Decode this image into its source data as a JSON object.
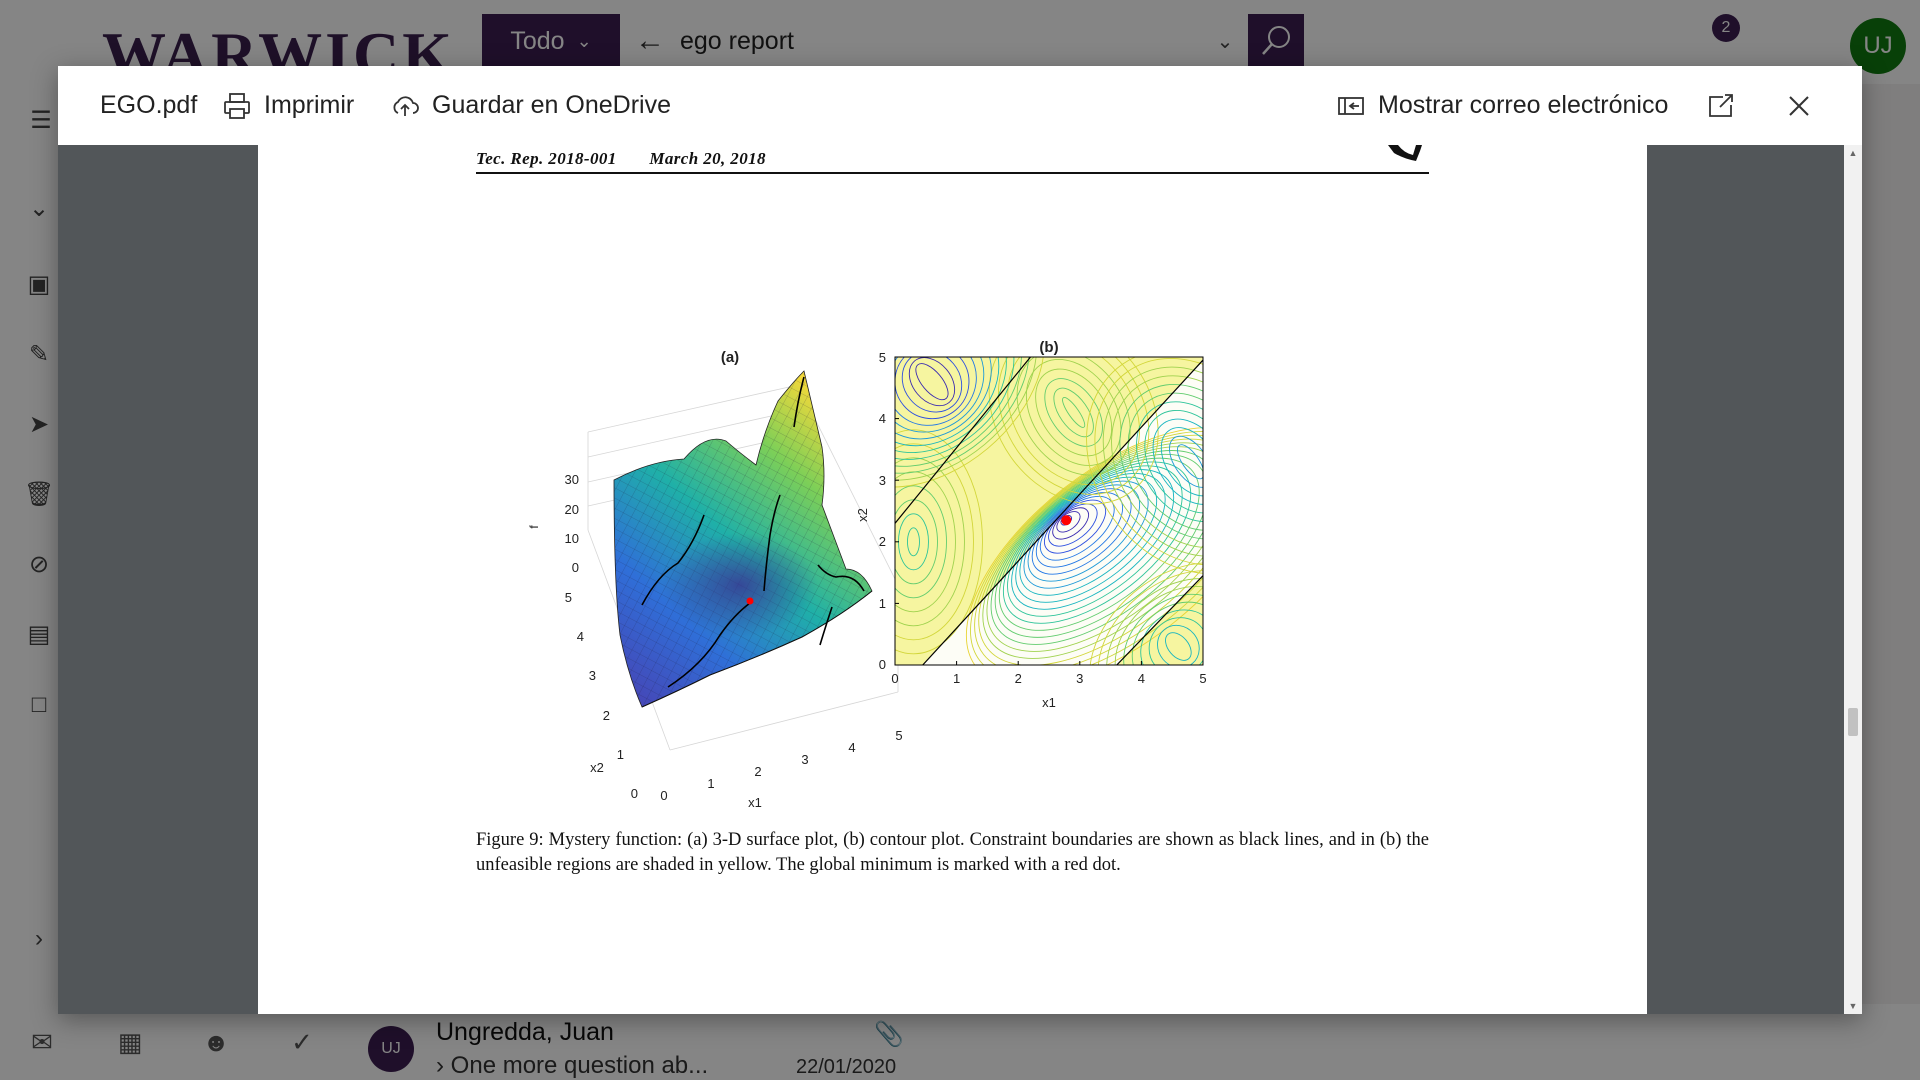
{
  "outlook": {
    "brand": "WARWICK",
    "scope_label": "Todo",
    "search_query": "ego report",
    "notification_count": "2",
    "user_initials": "UJ",
    "message": {
      "avatar": "UJ",
      "sender": "Ungredda, Juan",
      "subject": "One more question ab...",
      "date": "22/01/2020"
    }
  },
  "viewer": {
    "file_name": "EGO.pdf",
    "print_label": "Imprimir",
    "save_label": "Guardar en OneDrive",
    "show_email_label": "Mostrar correo electrónico"
  },
  "document": {
    "header_report": "Tec. Rep. 2018-001",
    "header_date": "March 20, 2018",
    "caption": "Figure 9: Mystery function: (a) 3-D surface plot, (b) contour plot. Constraint boundaries are shown as black lines, and in (b) the unfeasible regions are shaded in yellow. The global minimum is marked with a red dot."
  },
  "chart_data": [
    {
      "type": "surface",
      "title": "(a)",
      "xlabel": "x1",
      "ylabel": "x2",
      "zlabel": "f",
      "x_ticks": [
        "0",
        "1",
        "2",
        "3",
        "4",
        "5"
      ],
      "y_ticks": [
        "0",
        "1",
        "2",
        "3",
        "4",
        "5"
      ],
      "z_ticks": [
        "0",
        "10",
        "20",
        "30"
      ],
      "xlim": [
        0,
        5
      ],
      "ylim": [
        0,
        5
      ],
      "zlim": [
        0,
        30
      ],
      "marker": {
        "label": "global minimum",
        "color": "#ff0000"
      }
    },
    {
      "type": "contour",
      "title": "(b)",
      "xlabel": "x1",
      "ylabel": "x2",
      "x_ticks": [
        "0",
        "1",
        "2",
        "3",
        "4",
        "5"
      ],
      "y_ticks": [
        "0",
        "1",
        "2",
        "3",
        "4",
        "5"
      ],
      "xlim": [
        0,
        5
      ],
      "ylim": [
        0,
        5
      ],
      "constraint_lines": [
        {
          "points": [
            [
              0,
              2.3
            ],
            [
              2.2,
              5
            ]
          ]
        },
        {
          "points": [
            [
              0.45,
              0
            ],
            [
              5,
              4.95
            ]
          ]
        },
        {
          "points": [
            [
              3.6,
              0
            ],
            [
              5,
              1.45
            ]
          ]
        }
      ],
      "minimum": {
        "x": 2.78,
        "y": 2.35,
        "color": "#ff0000"
      },
      "infeasible_color": "#f6f5a0"
    }
  ],
  "colors": {
    "accent": "#3c1e52",
    "avatar_green": "#107c10",
    "viewer_bg": "#525659"
  },
  "icons": {
    "back": "arrow-left-icon",
    "search": "search-icon",
    "print": "printer-icon",
    "save": "cloud-upload-icon",
    "email": "show-email-icon",
    "popout": "popout-icon",
    "close": "close-icon",
    "attachment": "paperclip-icon"
  }
}
